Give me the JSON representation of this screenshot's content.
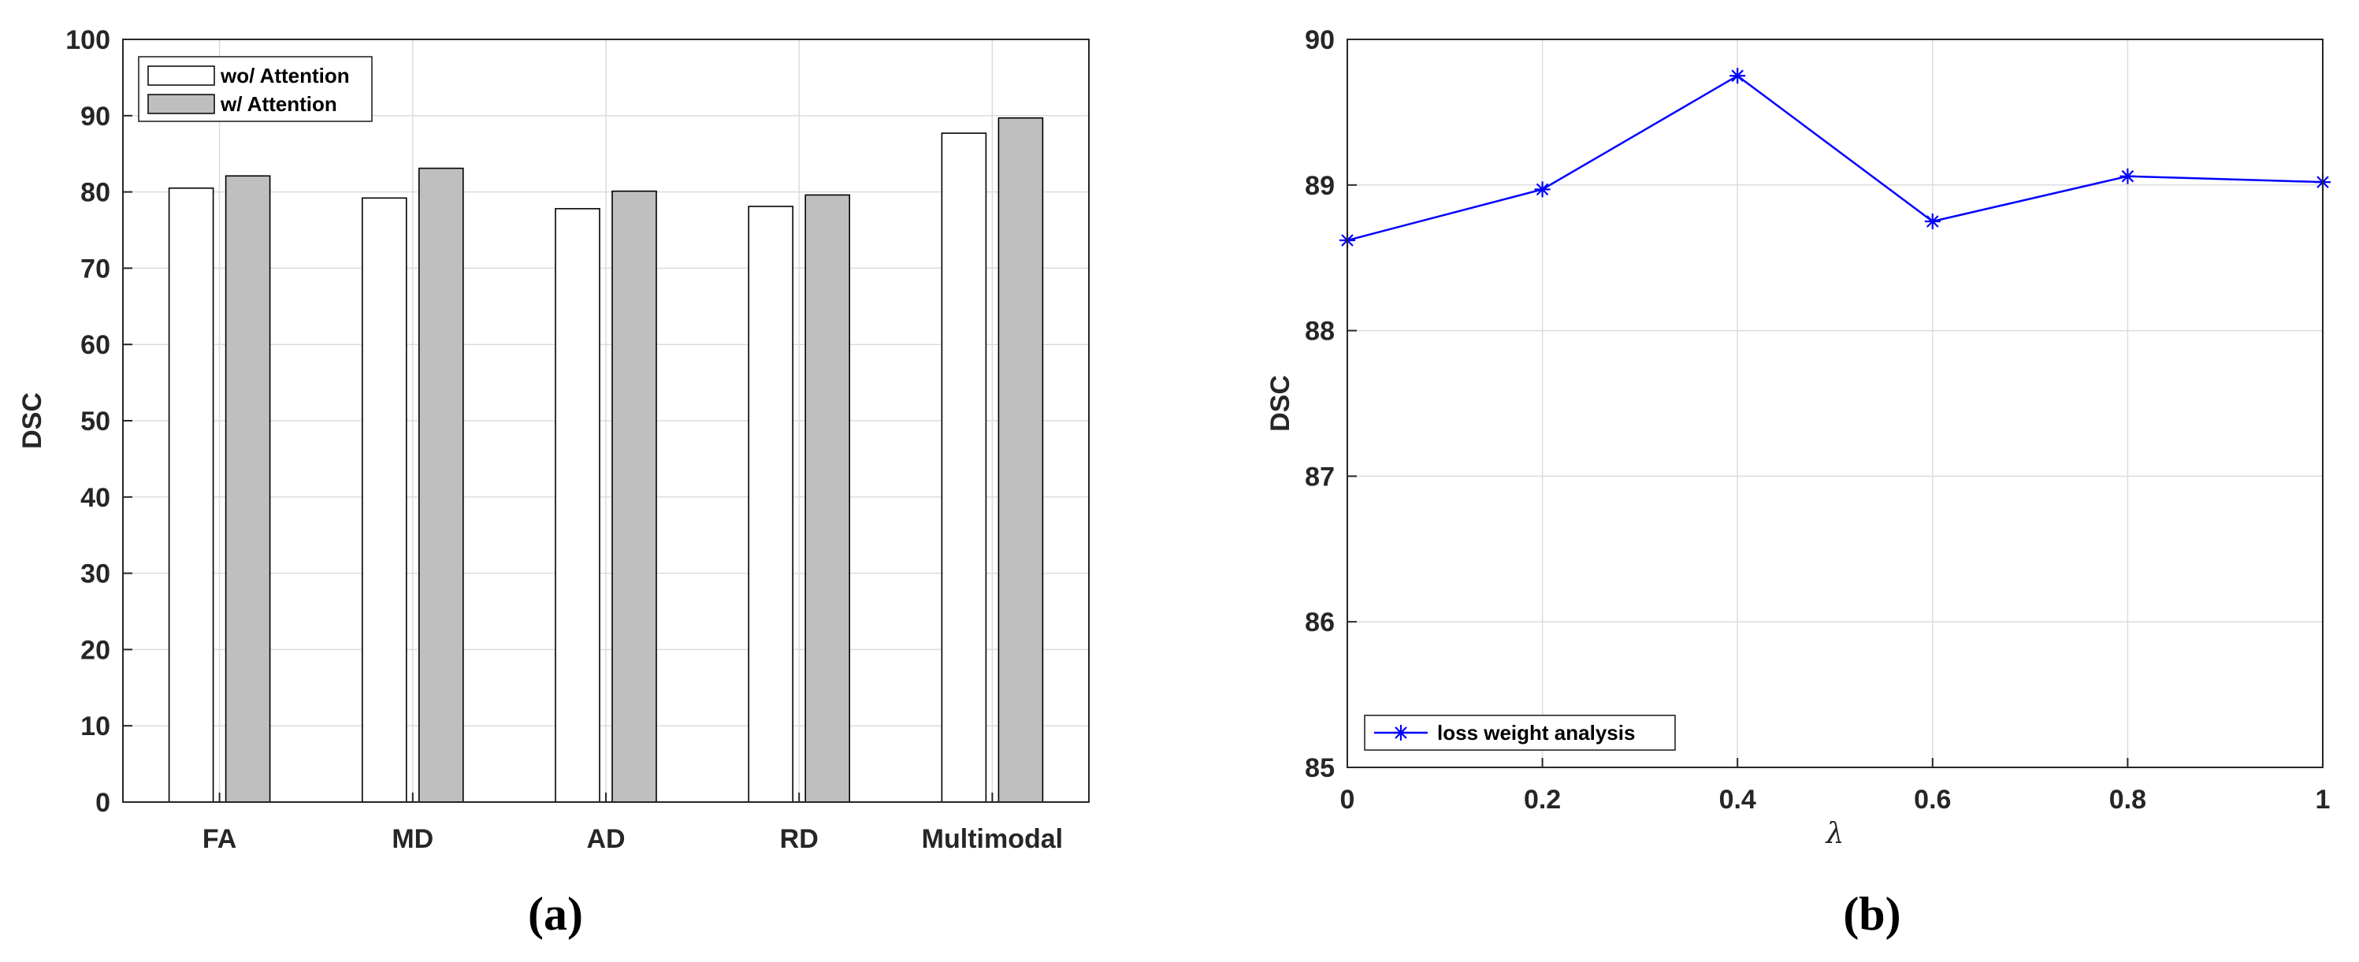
{
  "captions": [
    "(a)",
    "(b)"
  ],
  "colors": {
    "bar_wo": "#ffffff",
    "bar_w": "#bfbfbf",
    "line": "#0000ff",
    "grid": "#dcdcdc"
  },
  "chart_data": [
    {
      "type": "bar",
      "title": "",
      "xlabel": "",
      "ylabel": "DSC",
      "categories": [
        "FA",
        "MD",
        "AD",
        "RD",
        "Multimodal"
      ],
      "series": [
        {
          "name": "wo/ Attention",
          "values": [
            80.5,
            79.2,
            77.8,
            78.1,
            87.7
          ]
        },
        {
          "name": "w/ Attention",
          "values": [
            82.1,
            83.1,
            80.1,
            79.6,
            89.7
          ]
        }
      ],
      "ylim": [
        0,
        100
      ],
      "yticks": [
        "0",
        "10",
        "20",
        "30",
        "40",
        "50",
        "60",
        "70",
        "80",
        "90",
        "100"
      ],
      "grid": true,
      "legend": "top-left"
    },
    {
      "type": "line",
      "title": "",
      "xlabel": "λ",
      "ylabel": "DSC",
      "series": [
        {
          "name": "loss weight analysis",
          "marker": "asterisk",
          "x": [
            0,
            0.2,
            0.4,
            0.6,
            0.8,
            1
          ],
          "y": [
            88.62,
            88.97,
            89.75,
            88.75,
            89.06,
            89.02
          ]
        }
      ],
      "xlim": [
        0,
        1
      ],
      "ylim": [
        85,
        90
      ],
      "xticks": [
        "0",
        "0.2",
        "0.4",
        "0.6",
        "0.8",
        "1"
      ],
      "yticks": [
        "85",
        "86",
        "87",
        "88",
        "89",
        "90"
      ],
      "grid": true,
      "legend": "bottom-left"
    }
  ]
}
